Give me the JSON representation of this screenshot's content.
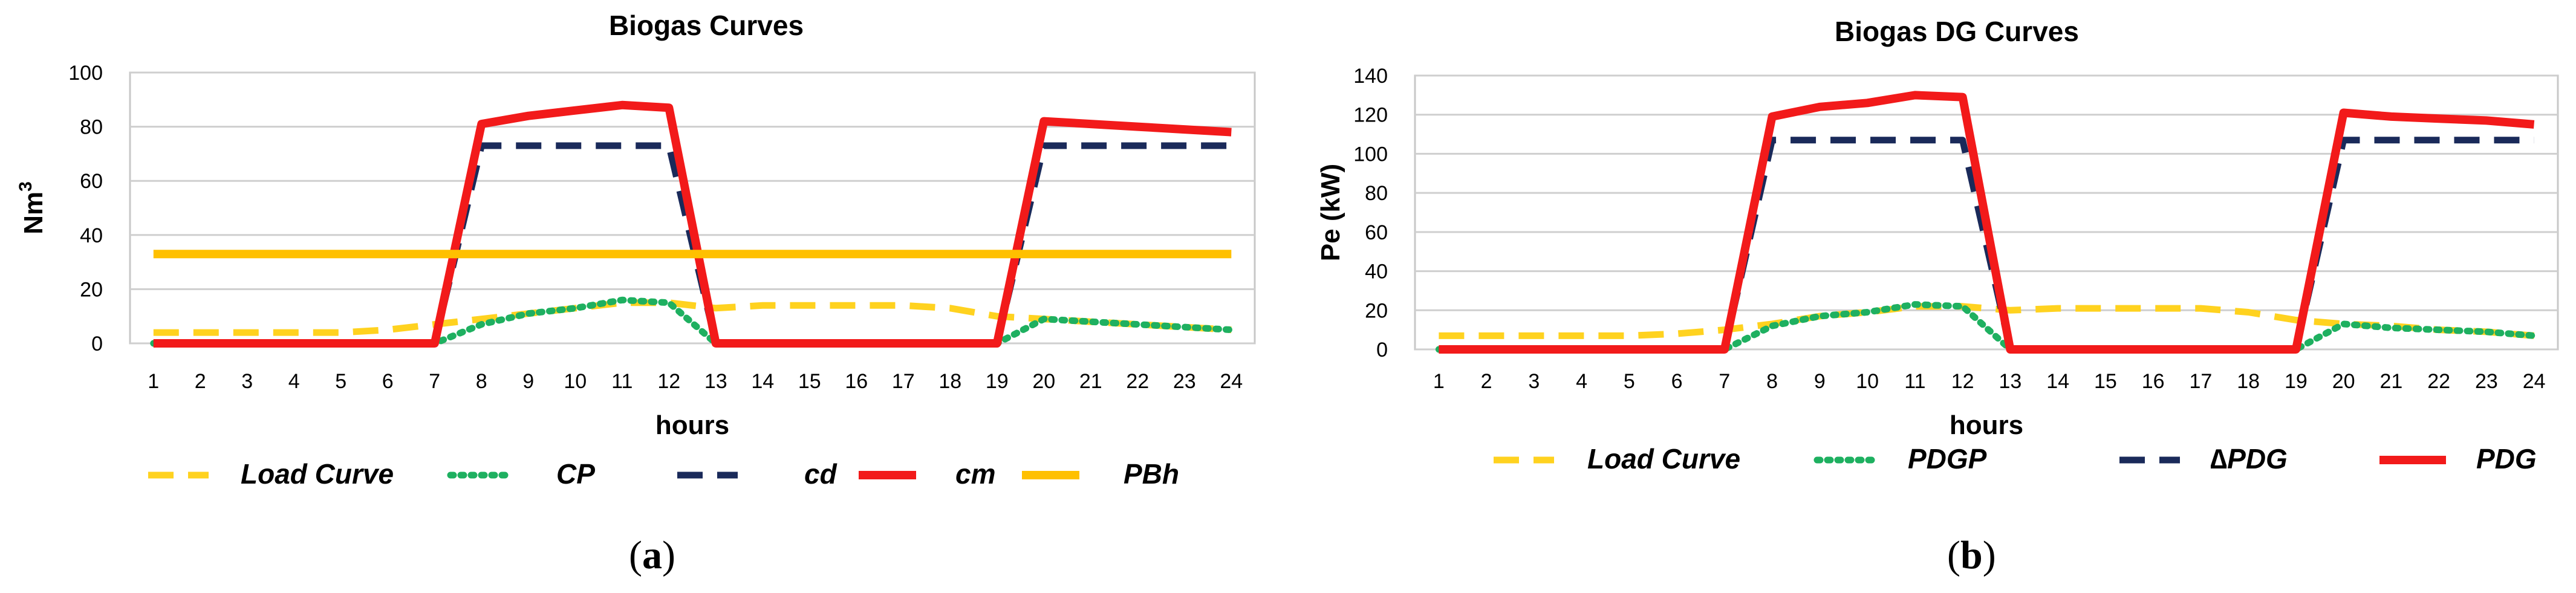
{
  "chart_data": [
    {
      "type": "line",
      "title": "Biogas Curves",
      "xlabel": "hours",
      "ylabel": "Nm",
      "ylabel_sup": "3",
      "caption": "(a)",
      "caption_letter": "a",
      "ylim": [
        0,
        100
      ],
      "yticks": [
        0,
        20,
        40,
        60,
        80,
        100
      ],
      "grid": true,
      "legend_position": "bottom",
      "x": [
        1,
        2,
        3,
        4,
        5,
        6,
        7,
        8,
        9,
        10,
        11,
        12,
        13,
        14,
        15,
        16,
        17,
        18,
        19,
        20,
        21,
        22,
        23,
        24
      ],
      "series": [
        {
          "name": "Load Curve",
          "color": "#FFD21F",
          "style": "dashed",
          "values": [
            4,
            4,
            4,
            4,
            4,
            5,
            7,
            9,
            11,
            13,
            15,
            15,
            13,
            14,
            14,
            14,
            14,
            13,
            10,
            9,
            8,
            7,
            6,
            5
          ]
        },
        {
          "name": "CP",
          "color": "#1EB060",
          "style": "dotted",
          "values": [
            0,
            0,
            0,
            0,
            0,
            0,
            0,
            7,
            11,
            13,
            16,
            15,
            0,
            0,
            0,
            0,
            0,
            0,
            0,
            9,
            8,
            7,
            6,
            5
          ]
        },
        {
          "name": "cd",
          "color": "#1A2A5A",
          "style": "dashed",
          "values": [
            0,
            0,
            0,
            0,
            0,
            0,
            0,
            73,
            73,
            73,
            73,
            73,
            0,
            0,
            0,
            0,
            0,
            0,
            0,
            73,
            73,
            73,
            73,
            73
          ]
        },
        {
          "name": "cm",
          "color": "#F21A1A",
          "style": "solid",
          "values": [
            0,
            0,
            0,
            0,
            0,
            0,
            0,
            81,
            84,
            86,
            88,
            87,
            0,
            0,
            0,
            0,
            0,
            0,
            0,
            82,
            81,
            80,
            79,
            78
          ]
        },
        {
          "name": "PBh",
          "color": "#FFC000",
          "style": "solid",
          "values": [
            33,
            33,
            33,
            33,
            33,
            33,
            33,
            33,
            33,
            33,
            33,
            33,
            33,
            33,
            33,
            33,
            33,
            33,
            33,
            33,
            33,
            33,
            33,
            33
          ]
        }
      ]
    },
    {
      "type": "line",
      "title": "Biogas DG Curves",
      "xlabel": "hours",
      "ylabel": "Pe (kW)",
      "caption": "(b)",
      "caption_letter": "b",
      "ylim": [
        0,
        140
      ],
      "yticks": [
        0,
        20,
        40,
        60,
        80,
        100,
        120,
        140
      ],
      "grid": true,
      "legend_position": "bottom",
      "x": [
        1,
        2,
        3,
        4,
        5,
        6,
        7,
        8,
        9,
        10,
        11,
        12,
        13,
        14,
        15,
        16,
        17,
        18,
        19,
        20,
        21,
        22,
        23,
        24
      ],
      "series": [
        {
          "name": "Load Curve",
          "color": "#FFD21F",
          "style": "dashed",
          "values": [
            7,
            7,
            7,
            7,
            7,
            8,
            10,
            13,
            17,
            19,
            22,
            22,
            20,
            21,
            21,
            21,
            21,
            19,
            15,
            13,
            12,
            10,
            9,
            7
          ]
        },
        {
          "name": "PDGP",
          "color": "#1EB060",
          "style": "dotted",
          "values": [
            0,
            0,
            0,
            0,
            0,
            0,
            0,
            12,
            17,
            19,
            23,
            22,
            0,
            0,
            0,
            0,
            0,
            0,
            0,
            13,
            11,
            10,
            9,
            7
          ]
        },
        {
          "name": "∆PDG",
          "color": "#1A2A5A",
          "style": "dashed",
          "values": [
            0,
            0,
            0,
            0,
            0,
            0,
            0,
            107,
            107,
            107,
            107,
            107,
            0,
            0,
            0,
            0,
            0,
            0,
            0,
            107,
            107,
            107,
            107,
            107
          ]
        },
        {
          "name": "PDG",
          "color": "#F21A1A",
          "style": "solid",
          "values": [
            0,
            0,
            0,
            0,
            0,
            0,
            0,
            119,
            124,
            126,
            130,
            129,
            0,
            0,
            0,
            0,
            0,
            0,
            0,
            121,
            119,
            118,
            117,
            115
          ]
        }
      ]
    }
  ]
}
